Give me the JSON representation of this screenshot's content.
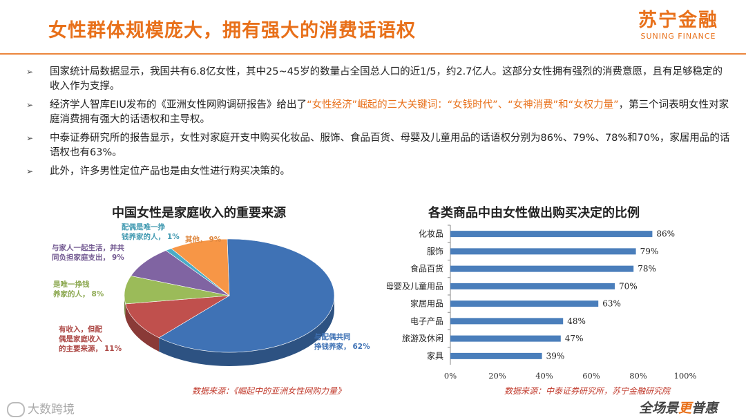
{
  "header": {
    "title": "女性群体规模庞大，拥有强大的消费话语权",
    "logo_cn": "苏宁金融",
    "logo_en": "SUNING FINANCE"
  },
  "bullets": [
    {
      "parts": [
        {
          "text": "国家统计局数据显示，我国共有6.8亿女性，其中25~45岁的数量占全国总人口的近1/5，约2.7亿人。这部分女性拥有强烈的消费意愿，且有足够稳定的收入作为支撑。",
          "hl": false
        }
      ]
    },
    {
      "parts": [
        {
          "text": "经济学人智库EIU发布的《亚洲女性网购调研报告》给出了",
          "hl": false
        },
        {
          "text": "“女性经济”崛起的三大关键词：“女钱时代”、“女神消费”和“女权力量”",
          "hl": true
        },
        {
          "text": "，第三个词表明女性对家庭消费拥有强大的话语权和主导权。",
          "hl": false
        }
      ]
    },
    {
      "parts": [
        {
          "text": "中泰证券研究所的报告显示，女性对家庭开支中购买化妆品、服饰、食品百货、母婴及儿童用品的话语权分别为86%、79%、78%和70%，家居用品的话语权也有63%。",
          "hl": false
        }
      ]
    },
    {
      "parts": [
        {
          "text": "此外，许多男性定位产品也是由女性进行购买决策的。",
          "hl": false
        }
      ]
    }
  ],
  "chart_data": [
    {
      "type": "pie",
      "title": "中国女性是家庭收入的重要来源",
      "source": "数据来源：《崛起中的亚洲女性网购力量》",
      "slices": [
        {
          "name": "与配偶共同挣钱养家，",
          "value": 62,
          "label": "62%",
          "color": "#3f72b5"
        },
        {
          "name": "有收入，但配偶是家庭收入的主要来源，",
          "value": 11,
          "label": "11%",
          "color": "#c0504d"
        },
        {
          "name": "是唯一挣钱养家的人，",
          "value": 8,
          "label": "8%",
          "color": "#9bbb59"
        },
        {
          "name": "与家人一起生活，并共同负担家庭支出，",
          "value": 9,
          "label": "9%",
          "color": "#8064a2"
        },
        {
          "name": "配偶是唯一挣钱养家的人，",
          "value": 1,
          "label": "1%",
          "color": "#4bacc6"
        },
        {
          "name": "其他，",
          "value": 9,
          "label": "9%",
          "color": "#f79646"
        }
      ]
    },
    {
      "type": "bar",
      "orientation": "horizontal",
      "title": "各类商品中由女性做出购买决定的比例",
      "source": "数据来源：中泰证券研究所，苏宁金融研究院",
      "categories": [
        "化妆品",
        "服饰",
        "食品百货",
        "母婴及儿童用品",
        "家居用品",
        "电子产品",
        "旅游及休闲",
        "家具"
      ],
      "values": [
        86,
        79,
        78,
        70,
        63,
        48,
        47,
        39
      ],
      "value_labels": [
        "86%",
        "79%",
        "78%",
        "70%",
        "63%",
        "48%",
        "47%",
        "39%"
      ],
      "xlim": [
        0,
        100
      ],
      "xticks": [
        "0%",
        "20%",
        "40%",
        "60%",
        "80%",
        "100%"
      ],
      "bar_color": "#4a7ebb"
    }
  ],
  "watermarks": {
    "left": "大数跨境",
    "right_a": "全场景",
    "right_v": "更",
    "right_b": "普惠"
  }
}
